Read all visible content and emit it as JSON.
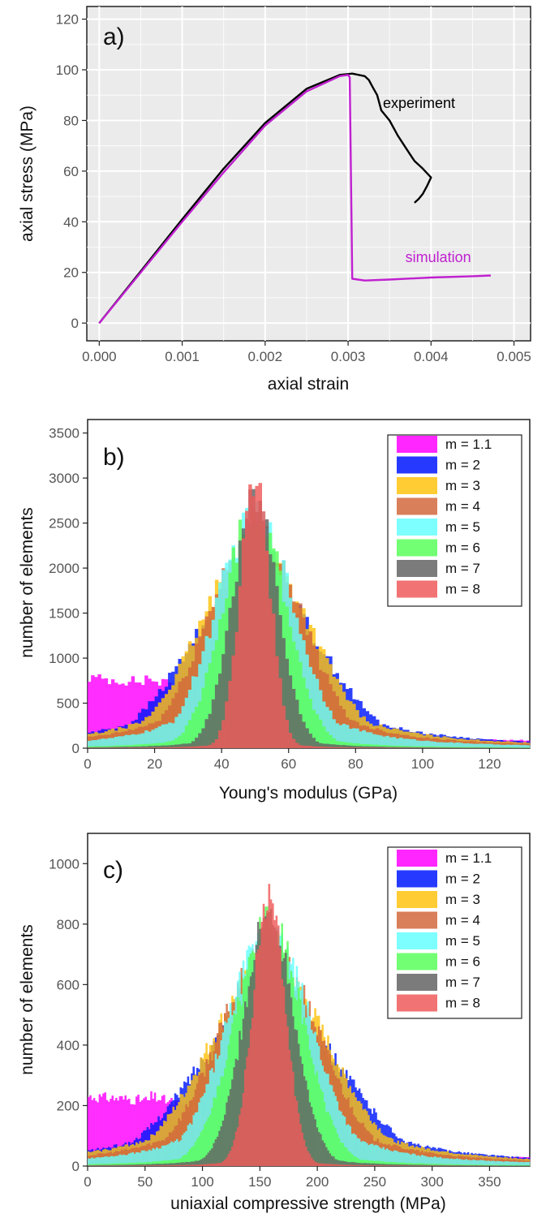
{
  "chart_data": [
    {
      "type": "line",
      "panel_label": "a)",
      "xlabel": "axial strain",
      "ylabel": "axial stress (MPa)",
      "xlim": [
        -0.00015,
        0.0052
      ],
      "ylim": [
        -7,
        125
      ],
      "xticks": [
        0,
        0.001,
        0.002,
        0.003,
        0.004,
        0.005
      ],
      "xtick_labels": [
        "0.000",
        "0.001",
        "0.002",
        "0.003",
        "0.004",
        "0.005"
      ],
      "yticks": [
        0,
        20,
        40,
        60,
        80,
        100,
        120
      ],
      "ytick_labels": [
        "0",
        "20",
        "40",
        "60",
        "80",
        "100",
        "120"
      ],
      "grid": true,
      "colors": {
        "panel_bg": "#ebebeb",
        "grid": "#ffffff"
      },
      "series": [
        {
          "name": "experiment",
          "color": "#000000",
          "x": [
            0,
            0.0005,
            0.001,
            0.0015,
            0.002,
            0.0025,
            0.0029,
            0.00305,
            0.0032,
            0.00325,
            0.0033,
            0.00335,
            0.0034,
            0.0035,
            0.0036,
            0.0037,
            0.0038,
            0.0039,
            0.004,
            0.00395,
            0.0039,
            0.00385,
            0.0038
          ],
          "y": [
            0,
            20.5,
            41,
            61,
            79,
            92.5,
            98,
            98.5,
            97.5,
            96,
            93,
            90,
            84,
            80,
            74,
            69,
            64,
            61,
            57.5,
            54,
            51,
            49,
            47.5
          ]
        },
        {
          "name": "simulation",
          "color": "#c020d0",
          "x": [
            0,
            0.0005,
            0.001,
            0.0015,
            0.002,
            0.0025,
            0.0029,
            0.003,
            0.00302,
            0.00305,
            0.0032,
            0.0035,
            0.004,
            0.0045,
            0.00472
          ],
          "y": [
            0,
            20,
            40,
            59.5,
            78,
            91.5,
            97.5,
            98,
            97,
            17.5,
            16.8,
            17.2,
            18,
            18.5,
            18.8
          ]
        }
      ],
      "annotations": [
        {
          "text": "experiment",
          "x": 0.00342,
          "y": 85,
          "color": "#000000"
        },
        {
          "text": "simulation",
          "x": 0.00369,
          "y": 24,
          "color": "#c020d0"
        }
      ]
    },
    {
      "type": "bar",
      "panel_label": "b)",
      "xlabel": "Young's modulus (GPa)",
      "ylabel": "number of elements",
      "xlim": [
        0,
        132
      ],
      "ylim": [
        0,
        3650
      ],
      "xticks": [
        0,
        20,
        40,
        60,
        80,
        100,
        120
      ],
      "xtick_labels": [
        "0",
        "20",
        "40",
        "60",
        "80",
        "100",
        "120"
      ],
      "yticks": [
        0,
        500,
        1000,
        1500,
        2000,
        2500,
        3000,
        3500
      ],
      "ytick_labels": [
        "0",
        "500",
        "1000",
        "1500",
        "2000",
        "2500",
        "3000",
        "3500"
      ],
      "grid": false,
      "legend": "top-right",
      "legend_labels": [
        "m = 1.1",
        "m = 2",
        "m = 3",
        "m = 4",
        "m = 5",
        "m = 6",
        "m = 7",
        "m = 8"
      ],
      "colors": [
        "#ff00ff",
        "#0018ff",
        "#ffc30f",
        "#d2693c",
        "#66ffff",
        "#5aff5a",
        "#646464",
        "#f05a5a"
      ],
      "bin_edges": [
        0,
        132
      ],
      "bin_count": 132,
      "series": [
        {
          "name": "m = 1.1",
          "peak_center": 50,
          "peak_height": 650,
          "left_plateau": 780,
          "right_tail_at_130": 80
        },
        {
          "name": "m = 2",
          "peak_center": 50,
          "peak_height": 1900,
          "left_plateau": 0,
          "right_tail_at_130": 40
        },
        {
          "name": "m = 3",
          "peak_center": 50,
          "peak_height": 2200,
          "left_plateau": 0,
          "right_tail_at_130": 0
        },
        {
          "name": "m = 4",
          "peak_center": 50,
          "peak_height": 2400,
          "left_plateau": 0,
          "right_tail_at_130": 0
        },
        {
          "name": "m = 5",
          "peak_center": 50,
          "peak_height": 2550,
          "left_plateau": 0,
          "right_tail_at_130": 0
        },
        {
          "name": "m = 6",
          "peak_center": 50,
          "peak_height": 2650,
          "left_plateau": 0,
          "right_tail_at_130": 0
        },
        {
          "name": "m = 7",
          "peak_center": 50,
          "peak_height": 2750,
          "left_plateau": 0,
          "right_tail_at_130": 0
        },
        {
          "name": "m = 8",
          "peak_center": 50,
          "peak_height": 3000,
          "left_plateau": 0,
          "right_tail_at_130": 0
        }
      ]
    },
    {
      "type": "bar",
      "panel_label": "c)",
      "xlabel": "uniaxial compressive strength (MPa)",
      "ylabel": "number of elements",
      "xlim": [
        0,
        385
      ],
      "ylim": [
        0,
        1100
      ],
      "xticks": [
        0,
        50,
        100,
        150,
        200,
        250,
        300,
        350
      ],
      "xtick_labels": [
        "0",
        "50",
        "100",
        "150",
        "200",
        "250",
        "300",
        "350"
      ],
      "yticks": [
        0,
        200,
        400,
        600,
        800,
        1000
      ],
      "ytick_labels": [
        "0",
        "200",
        "400",
        "600",
        "800",
        "1000"
      ],
      "grid": false,
      "legend": "top-right",
      "legend_labels": [
        "m = 1.1",
        "m = 2",
        "m = 3",
        "m = 4",
        "m = 5",
        "m = 6",
        "m = 7",
        "m = 8"
      ],
      "colors": [
        "#ff00ff",
        "#0018ff",
        "#ffc30f",
        "#d2693c",
        "#66ffff",
        "#5aff5a",
        "#646464",
        "#f05a5a"
      ],
      "bin_edges": [
        0,
        385
      ],
      "bin_count": 240,
      "series": [
        {
          "name": "m = 1.1",
          "peak_center": 158,
          "peak_height": 220,
          "left_plateau": 230,
          "right_tail_at_380": 25
        },
        {
          "name": "m = 2",
          "peak_center": 158,
          "peak_height": 560,
          "left_plateau": 0,
          "right_tail_at_380": 15
        },
        {
          "name": "m = 3",
          "peak_center": 158,
          "peak_height": 650,
          "left_plateau": 0,
          "right_tail_at_380": 0
        },
        {
          "name": "m = 4",
          "peak_center": 158,
          "peak_height": 700,
          "left_plateau": 0,
          "right_tail_at_380": 0
        },
        {
          "name": "m = 5",
          "peak_center": 158,
          "peak_height": 760,
          "left_plateau": 0,
          "right_tail_at_380": 0
        },
        {
          "name": "m = 6",
          "peak_center": 158,
          "peak_height": 800,
          "left_plateau": 0,
          "right_tail_at_380": 0
        },
        {
          "name": "m = 7",
          "peak_center": 158,
          "peak_height": 830,
          "left_plateau": 0,
          "right_tail_at_380": 0
        },
        {
          "name": "m = 8",
          "peak_center": 158,
          "peak_height": 900,
          "left_plateau": 0,
          "right_tail_at_380": 0
        }
      ]
    }
  ]
}
